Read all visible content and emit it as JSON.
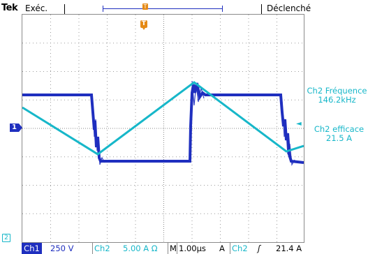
{
  "header": {
    "brand": "Tek",
    "acq_mode": "Exéc.",
    "trigger_state": "Déclenché",
    "trigger_marker": "T"
  },
  "channel1": {
    "marker": "1"
  },
  "channel2": {
    "flag": "2"
  },
  "measurements": [
    {
      "name": "Ch2 Fréquence",
      "value": "146.2kHz"
    },
    {
      "name": "Ch2 efficace",
      "value": "21.5 A"
    }
  ],
  "status": {
    "ch1_label": "Ch1",
    "ch1_scale": "250 V",
    "ch2_label": "Ch2",
    "ch2_scale": "5.00 A Ω",
    "timebase_label": "M",
    "timebase": "1.00µs",
    "trigger_source_label": "A",
    "trigger_source": "Ch2",
    "trigger_slope": "ʃ",
    "trigger_level": "21.4 A"
  },
  "colors": {
    "ch1": "#1f2fbf",
    "ch2": "#17b7c9",
    "trigger": "#e58a16",
    "grid": "#8a8a8a"
  }
}
